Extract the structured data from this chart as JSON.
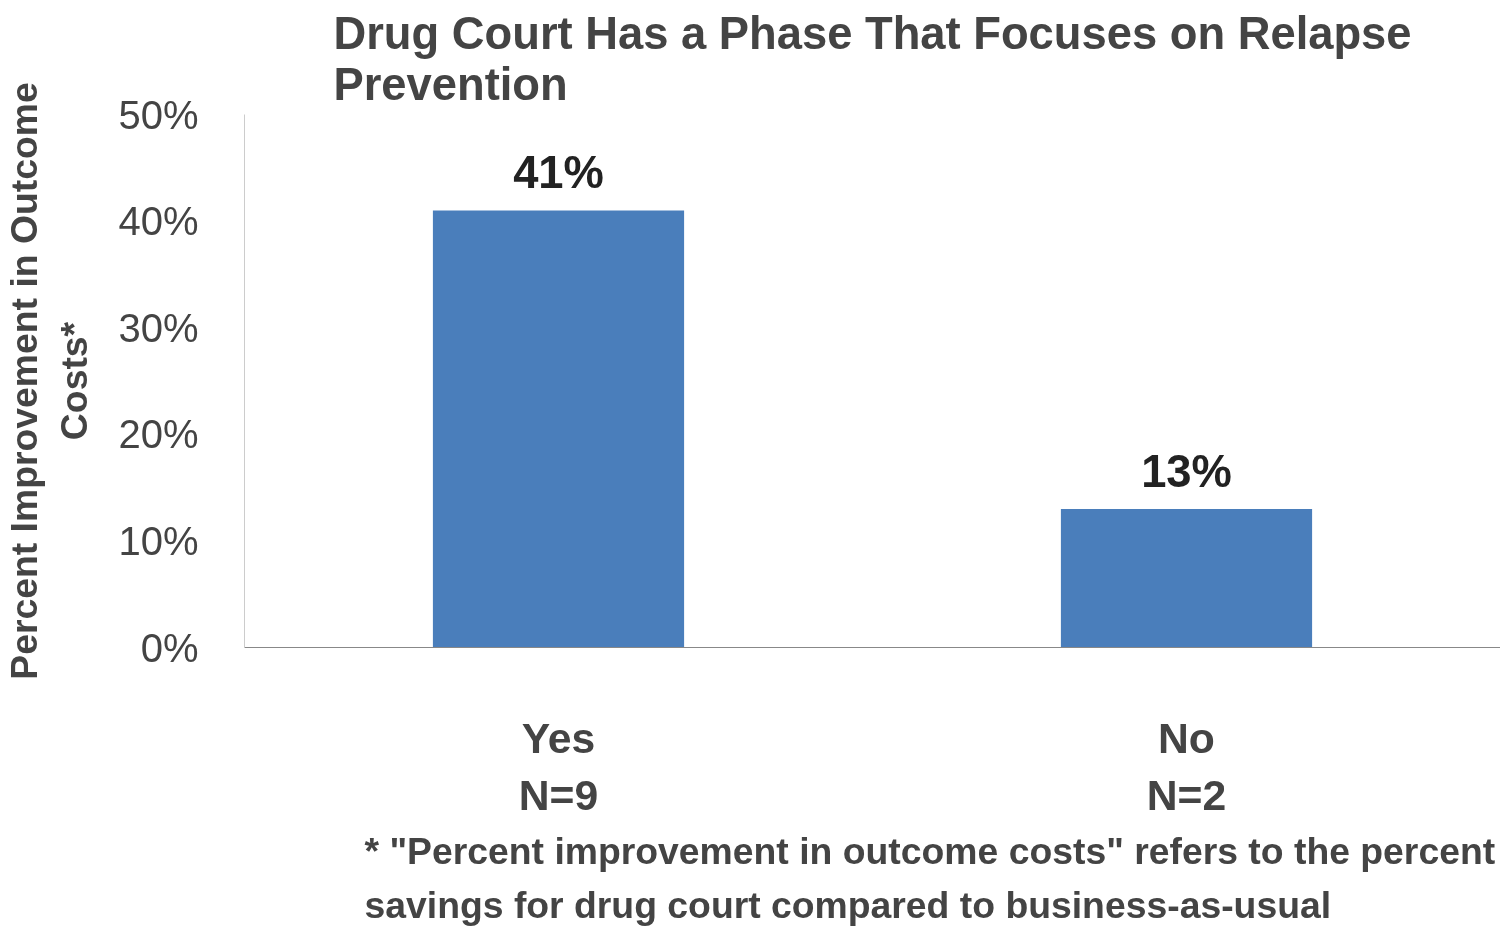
{
  "chart_data": {
    "type": "bar",
    "title": "Drug Court Has a Phase That Focuses on Relapse Prevention",
    "ylabel": "Percent Improvement in Outcome Costs*",
    "categories": [
      "Yes\nN=9",
      "No\nN=2"
    ],
    "values": [
      41,
      13
    ],
    "value_labels": [
      "41%",
      "13%"
    ],
    "color": "#4a7ebb",
    "ylim": [
      0,
      50
    ],
    "yticks": [
      {
        "value": 0,
        "label": "0%"
      },
      {
        "value": 10,
        "label": "10%"
      },
      {
        "value": 20,
        "label": "20%"
      },
      {
        "value": 30,
        "label": "30%"
      },
      {
        "value": 40,
        "label": "40%"
      },
      {
        "value": 50,
        "label": "50%"
      }
    ],
    "grid": false,
    "annotations": [
      "* \"Percent improvement in outcome costs\" refers to the percent savings for drug court compared to business-as-usual"
    ]
  }
}
